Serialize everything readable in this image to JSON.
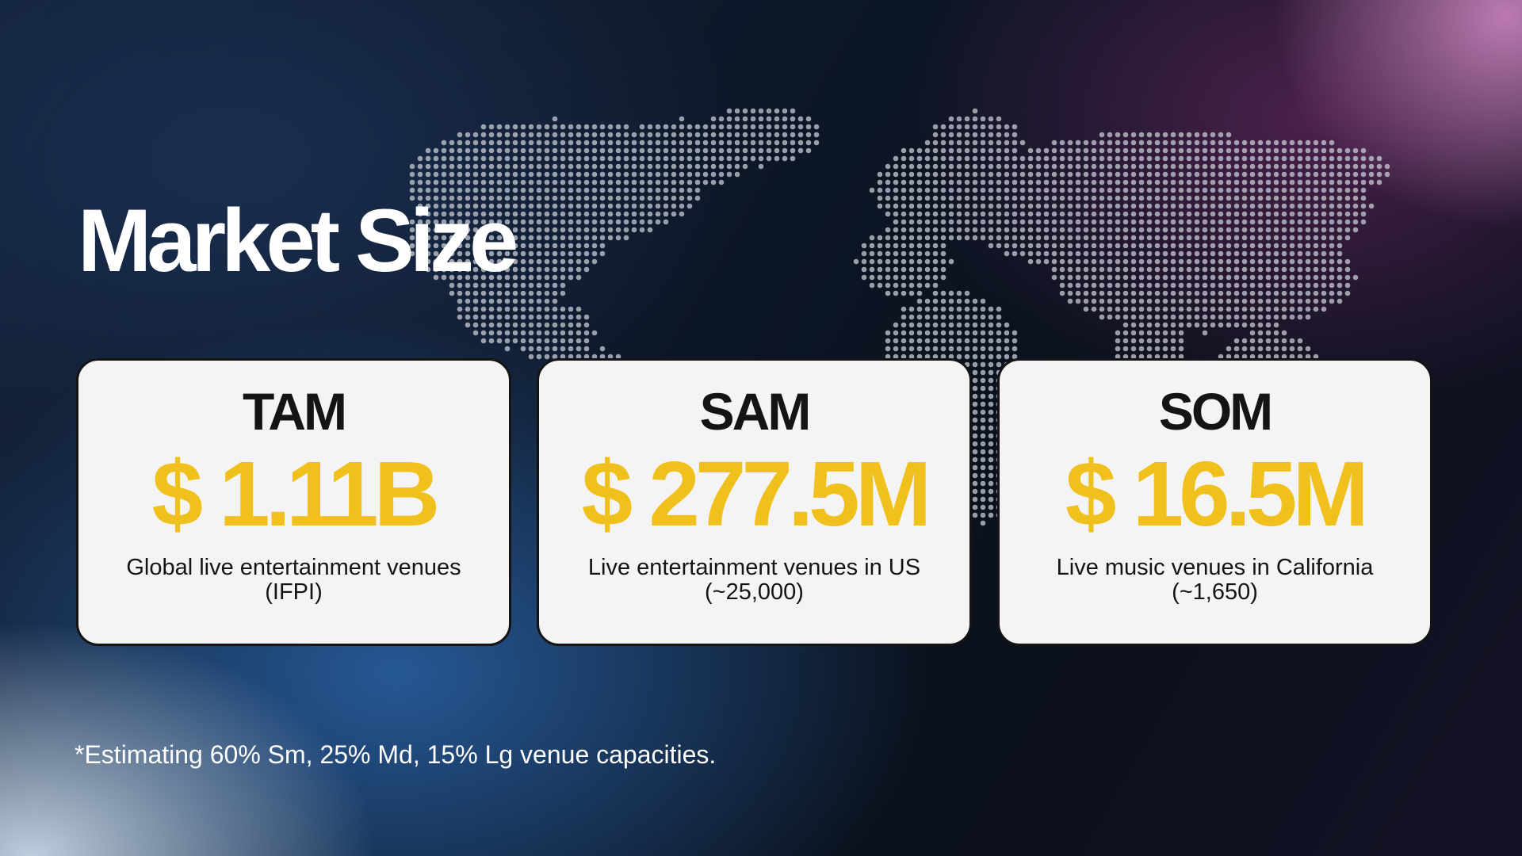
{
  "slide": {
    "title": "Market Size",
    "footnote": "*Estimating 60% Sm, 25% Md, 15% Lg venue capacities.",
    "background_icon": "dotted-world-map-icon"
  },
  "cards": [
    {
      "label": "TAM",
      "value": "$ 1.11B",
      "description_line1": "Global live entertainment venues",
      "description_line2": "(IFPI)"
    },
    {
      "label": "SAM",
      "value": "$ 277.5M",
      "description_line1": "Live entertainment venues in US",
      "description_line2": "(~25,000)"
    },
    {
      "label": "SOM",
      "value": "$ 16.5M",
      "description_line1": "Live music venues in California",
      "description_line2": "(~1,650)"
    }
  ],
  "colors": {
    "value_yellow": "#f0c11d",
    "card_background": "#f4f4f4",
    "card_border": "#141414",
    "map_dot": "#c8ccd4"
  }
}
